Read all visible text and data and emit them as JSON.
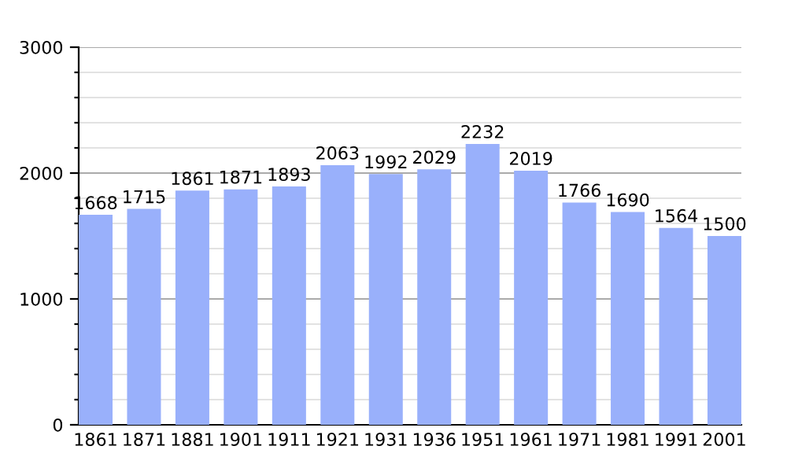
{
  "chart_data": {
    "type": "bar",
    "categories": [
      "1861",
      "1871",
      "1881",
      "1901",
      "1911",
      "1921",
      "1931",
      "1936",
      "1951",
      "1961",
      "1971",
      "1981",
      "1991",
      "2001"
    ],
    "values": [
      1668,
      1715,
      1861,
      1871,
      1893,
      2063,
      1992,
      2029,
      2232,
      2019,
      1766,
      1690,
      1564,
      1500
    ],
    "color": "#99b0fb",
    "data_labels": true,
    "grid": "y",
    "ylim": [
      0,
      3000
    ],
    "yticks": [
      0,
      {
        "value": 200,
        "label": null
      },
      {
        "value": 400,
        "label": null
      },
      {
        "value": 600,
        "label": null
      },
      {
        "value": 800,
        "label": null
      },
      1000,
      {
        "value": 1200,
        "label": null
      },
      {
        "value": 1400,
        "label": null
      },
      {
        "value": 1600,
        "label": null
      },
      {
        "value": 1800,
        "label": null
      },
      2000,
      {
        "value": 2200,
        "label": null
      },
      {
        "value": 2400,
        "label": null
      },
      {
        "value": 2600,
        "label": null
      },
      {
        "value": 2800,
        "label": null
      },
      3000
    ]
  }
}
